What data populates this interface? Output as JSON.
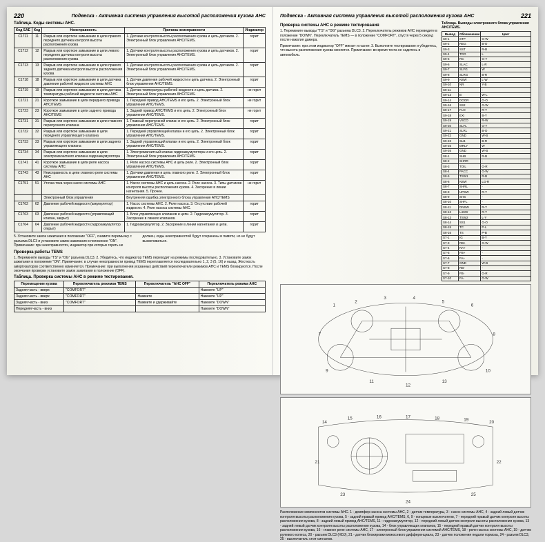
{
  "leftPage": {
    "pageNum": "220",
    "headerTitle": "Подвеска - Активная система управления высотой расположения кузова AHC",
    "tableTitle": "Таблица. Коды системы AHC.",
    "headers": [
      "Код SAE",
      "Код",
      "Неисправность",
      "Причина неисправности",
      "Индикатор"
    ],
    "rows": [
      [
        "C1711",
        "11",
        "Разрыв или короткое замыкание в цепи правого переднего датчика контроля высоты расположения кузова",
        "1. Датчики контроля высоты расположения кузова и цепь датчиков.\n2. Электронный блок управления AHC/TEMS.",
        "горит"
      ],
      [
        "C1712",
        "12",
        "Разрыв или короткое замыкание в цепи левого переднего датчика контроля высоты расположения кузова",
        "1. Датчики контроля высоты расположения кузова и цепь датчиков.\n2. Электронный блок управления AHC/TEMS.",
        "горит"
      ],
      [
        "C1713",
        "13",
        "Разрыв или короткое замыкание в цепи правого заднего датчика контроля высоты расположения кузова",
        "1. Датчики контроля высоты расположения кузова и цепь датчиков.\n2. Электронный блок управления AHC/TEMS.",
        "горит"
      ],
      [
        "C1718",
        "18",
        "Разрыв или короткое замыкание в цепи датчика давления рабочей жидкости системы AHC",
        "1. Датчик давления рабочей жидкости и цепь датчика.\n2. Электронный блок управления AHC/TEMS.",
        "горит"
      ],
      [
        "C1719",
        "19",
        "Разрыв или короткое замыкание в цепи датчика температуры рабочей жидкости системы AHC",
        "1. Датчик температуры рабочей жидкости и цепь датчика.\n2. Электронный блок управления AHC/TEMS.",
        "не горит"
      ],
      [
        "C1721",
        "21",
        "Короткое замыкание в цепи переднего привода AHC/TEMS",
        "1. Передний привод AHC/TEMS и его цепь.\n2. Электронный блок управления AHC/TEMS.",
        "не горит"
      ],
      [
        "C1723",
        "23",
        "Короткое замыкание в цепи заднего привода AHC/TEMS",
        "1. Задний привод AHC/TEMS и его цепь.\n2. Электронный блок управления AHC/TEMS.",
        "не горит"
      ],
      [
        "C1731",
        "31",
        "Разрыв или короткое замыкание в цепи главного перепускного клапана",
        "1. Главный перепускной клапан и его цепь.\n2. Электронный блок управления AHC/TEMS.",
        "горит"
      ],
      [
        "C1732",
        "32",
        "Разрыв или короткое замыкание в цепи переднего управляющего клапана",
        "1. Передний управляющий клапан и его цепь.\n2. Электронный блок управления AHC/TEMS.",
        "горит"
      ],
      [
        "C1733",
        "33",
        "Разрыв или короткое замыкание в цепи заднего управляющего клапана",
        "1. Задний управляющий клапан и его цепь.\n2. Электронный блок управления AHC/TEMS.",
        "горит"
      ],
      [
        "C1734",
        "34",
        "Разрыв или короткое замыкание в цепи электромагнитного клапана гидроаккумулятора",
        "1. Электромагнитный клапан гидроаккумулятора и его цепь.\n2. Электронный блок управления AHC/TEMS.",
        "горит"
      ],
      [
        "C1741",
        "41",
        "Короткое замыкание в цепи реле насоса системы AHC",
        "1. Реле насоса системы AHC и цепь реле.\n2. Электронный блок управления AHC/TEMS.",
        "горит"
      ],
      [
        "C1743",
        "43",
        "Неисправность в цепи главного реле системы AHC",
        "1. Датчики давления и цепь главного реле.\n2. Электронный блок управления AHC/TEMS.",
        "горит"
      ],
      [
        "C1751",
        "51",
        "Утечка тока через насос системы AHC",
        "1. Насос системы AHC и цепь насоса.\n2. Реле насоса.\n3. Типы датчиков контроля высоты расположения кузова.\n4. Засорение в линии нагнетания.\n5. Прочее.",
        "не горит"
      ],
      [
        "",
        "",
        "Электронный блок управления",
        "Внутренняя ошибка электронного блока управления AHC/TEMS",
        ""
      ],
      [
        "C1762",
        "62",
        "Давление рабочей жидкости (аккумулятор)",
        "1. Насос системы AHC.\n2. Реле насоса.\n3. Отсутствие рабочей жидкости.\n4. Реле насоса системы AHC.",
        "горит"
      ],
      [
        "C1763",
        "63",
        "Давление рабочей жидкости (управляющий клапан, закрыт)",
        "1. Блок управляющих клапанов и цепи.\n2. Гидроаккумулятор.\n3. Засорение в линиях клапанов.",
        "горит"
      ],
      [
        "C1764",
        "64",
        "Давление рабочей жидкости (гидроаккумулятор открыт)",
        "1. Гидроаккумулятор.\n2. Засорение в линии нагнетания и цепи.",
        "горит"
      ]
    ],
    "footnote": "5. Установите замок зажигания в положение \"OFF\", снимите перемычку с разъема DLC3 и установите замок зажигания в положение \"ON\".\nПримечание: при неисправностях, индикатор при которых гореть не должен, коды неисправностей будут сохранены в памяти, но не будут высвечиваться.",
    "tems": {
      "title": "Проверка работы TEMS",
      "text": "1. Перемкните выводы \"TS\" и \"OG\" разъема DLC3.\n2. Убедитесь, что индикатор TEMS переходит на режимы последовательно.\n3. Установите замок зажигания в положение \"ON\".\nПримечание: в случае неисправности привод TEMS переплавляется последовательно 1, 2, 3 (5, 16) и назад. Жесткость амортизаторов соответственно изменяется.\n\nПримечание: при выполнении указанных действий переключатели режимов AHC и TEMS блокируются. После окончания проверки установите замок зажигания в положение (OFF)."
    },
    "ahcTable": {
      "title": "Таблица. Проверка системы AHC в режиме тестирования.",
      "headers": [
        "Перемещение кузова",
        "Переключатель режимов TEMS",
        "Переключатель \"AHC OFF\"",
        "Переключатель режима AHC"
      ],
      "rows": [
        [
          "Задняя часть - вверх",
          "\"COMFORT\"",
          "",
          "Нажмите \"UP\""
        ],
        [
          "Задняя часть - вверх",
          "\"COMFORT\"",
          "Нажмите",
          "Нажмите \"UP\""
        ],
        [
          "Задняя часть - вниз",
          "\"COMFORT\"",
          "Нажмите и удерживайте",
          "Нажмите \"DOWN\""
        ],
        [
          "Передняя часть - вниз",
          "",
          "",
          "Нажмите \"DOWN\""
        ]
      ]
    }
  },
  "rightPage": {
    "pageNum": "221",
    "headerTitle": "Подвеска - Активная система управления высотой расположения кузова AHC",
    "checkTitle": "Проверка системы AHC в режиме тестирования",
    "checkText": "1. Перемкните выводы \"TS\" и \"OG\" разъема DLC3.\n2. Переключатель режимов AHC переведите в положение \"DOWN\". Переключатель TEMS — в положение \"COMFORT\", спустя через 5 секунд после нажатия дамера.",
    "note": "Примечание: при этом индикатор \"OFF\" мигает и гаснет.\n3. Выполните тестирование и убедитесь, что высота расположения кузова меняется.\nПримечание: во время теста не садитесь в автомобиль.",
    "colorTitle": "Таблица. Выводы электронного блока управления AHC/TEMS.",
    "colorHeaders": [
      "Вывод",
      "Обозначение",
      "Цвет"
    ],
    "colorRows": [
      [
        "S9-1",
        "STP",
        "G-W"
      ],
      [
        "S9-2",
        "REG",
        "B-O"
      ],
      [
        "S9-3",
        "SST",
        "R-B"
      ],
      [
        "S9-4",
        "TRO",
        "L"
      ],
      [
        "S9-5",
        "RC",
        "G-Y"
      ],
      [
        "S9-6",
        "SLAC",
        "L-R"
      ],
      [
        "S9-7",
        "SLFG",
        "W"
      ],
      [
        "S9-8",
        "SLRG",
        "B-R"
      ],
      [
        "S9-9",
        "NSW",
        "L-W"
      ],
      [
        "S9-10",
        "NR",
        "Y-B"
      ],
      [
        "S9-11",
        "-",
        "-"
      ],
      [
        "S9-13",
        "B",
        "W-L"
      ],
      [
        "S9-14",
        "DOOR",
        "G-O"
      ],
      [
        "S9-16",
        "SS2",
        "G-W"
      ],
      [
        "S9-17",
        "FLO",
        "R-Y"
      ],
      [
        "S9-18",
        "EXI",
        "B-Y"
      ],
      [
        "S9-19",
        "VSCO",
        "R-W"
      ],
      [
        "S9-20",
        "SLFL",
        "G-Y"
      ],
      [
        "S9-21",
        "SLRL",
        "B-O"
      ],
      [
        "S9-22",
        "GND",
        "W-B"
      ],
      [
        "S9-23",
        "SLB",
        "B-R"
      ],
      [
        "S9-25",
        "MRLY",
        "W"
      ],
      [
        "S9-26",
        "GND",
        "W-B"
      ],
      [
        "S8-1",
        "SHB",
        "R-B"
      ],
      [
        "S8-2",
        "SHRR",
        "-"
      ],
      [
        "S8-3",
        "TOIL",
        "G-R"
      ],
      [
        "S8-4",
        "PACC",
        "G-W"
      ],
      [
        "S8-5",
        "TSW1",
        "R-B"
      ],
      [
        "S8-6",
        "NSW",
        "LG-R"
      ],
      [
        "S8-7",
        "SHRL",
        "-"
      ],
      [
        "S8-8",
        "UPSW",
        "R-Y"
      ],
      [
        "S8-9",
        "SHS",
        "-"
      ],
      [
        "S8-10",
        "SHFL",
        "-"
      ],
      [
        "S8-11",
        "DNSW",
        "R-Y"
      ],
      [
        "S8-12",
        "L4SW",
        "R-Y"
      ],
      [
        "S8-13",
        "TSW2",
        "L-Y"
      ],
      [
        "S8-14",
        "SS1",
        "G-O"
      ],
      [
        "S8-15",
        "TC",
        "P-L"
      ],
      [
        "S8-16",
        "TS",
        "P-B"
      ],
      [
        "S7-1",
        "IG",
        "B-Y"
      ],
      [
        "S7-3",
        "RB+",
        "G-W"
      ],
      [
        "S7-4",
        "RA+",
        "-"
      ],
      [
        "S7-5",
        "FB+",
        "-"
      ],
      [
        "S7-6",
        "FA+",
        "-"
      ],
      [
        "S7-7",
        "GND",
        "W-B"
      ],
      [
        "S7-8",
        "RB-",
        "-"
      ],
      [
        "S7-9",
        "FB-",
        "G-R"
      ],
      [
        "S7-10",
        "FA-",
        "G-W"
      ]
    ],
    "componentsText": "Расположение компонентов системы AHC. 1 - демпфер насоса системы AHC, 2 - датчик температуры, 3 - насос системы AHC, 4 - задний левый датчик контроля высоты расположения кузова, 5 - задний правый привод AHC/TEMS, 6, 9 - концевые выключатели, 7 - передний правый датчик контроля высоты расположения кузова, 8 - задний левый привод AHC/TEMS, 11 - гидроаккумулятор, 12 - передний левый датчик контроля высоты расположения кузова, 13 - задний левый датчик контроля высоты расположения кузова, 14 - блок управляющих клапанов, 15 - передний правый датчик контроля высоты расположения кузова, 16 - главное реле системы AHC, 17 - электронный блок управления системой AHC/TEMS, 18 - реле насоса системы AHC, 19 - датчик рулевого колеса, 20 - разъем DLC3 (HDJ), 21 - датчик блокировки межосевого дифференциала, 23 - датчик положения педали тормоза, 24 - разъем DLC3, 25 - выключатель стоп-сигналов."
  }
}
